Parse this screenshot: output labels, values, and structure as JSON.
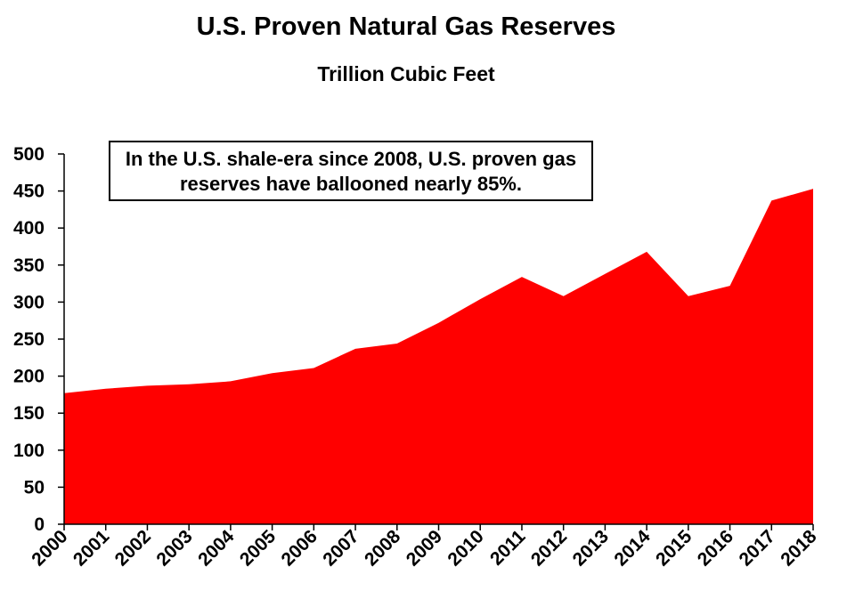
{
  "chart_data": {
    "type": "area",
    "title": "U.S. Proven Natural Gas Reserves",
    "subtitle": "Trillion Cubic Feet",
    "annotation": "In the U.S. shale-era since 2008, U.S. proven gas reserves have ballooned nearly 85%.",
    "x": [
      "2000",
      "2001",
      "2002",
      "2003",
      "2004",
      "2005",
      "2006",
      "2007",
      "2008",
      "2009",
      "2010",
      "2011",
      "2012",
      "2013",
      "2014",
      "2015",
      "2016",
      "2017",
      "2018"
    ],
    "series": [
      {
        "values": [
          177,
          183,
          187,
          189,
          193,
          204,
          211,
          237,
          244,
          272,
          304,
          334,
          308,
          338,
          368,
          308,
          322,
          437,
          453
        ]
      }
    ],
    "ylim": [
      0,
      500
    ],
    "yticks": [
      0,
      50,
      100,
      150,
      200,
      250,
      300,
      350,
      400,
      450,
      500
    ],
    "grid": false,
    "colors": {
      "fill": "#ff0000"
    }
  }
}
